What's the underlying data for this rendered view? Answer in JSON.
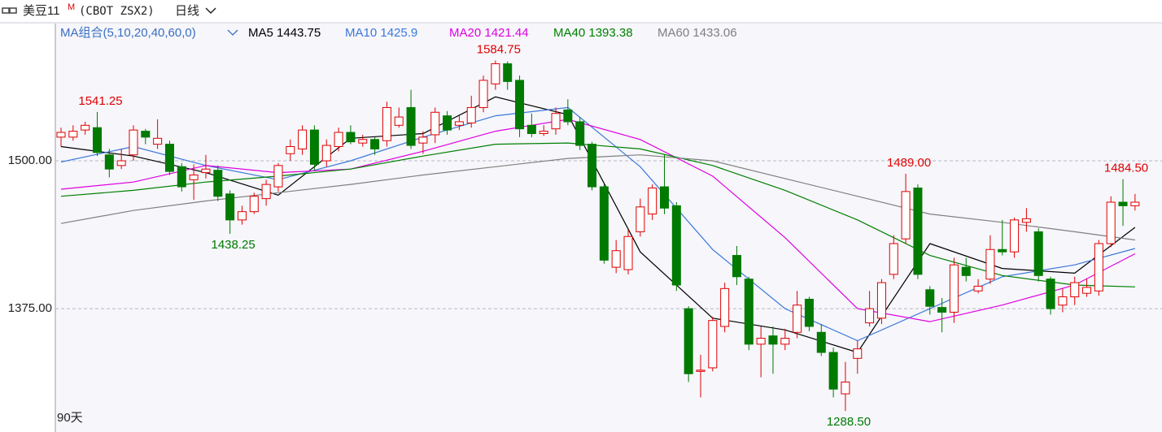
{
  "header": {
    "symbol": "美豆11",
    "badge": "M",
    "code": "(CBOT ZSX2)",
    "period": "日线"
  },
  "chart_data": {
    "type": "candlestick",
    "ma_title": "MA组合(5,10,20,40,60,0)",
    "period_label": "90天",
    "ylim": [
      1270.75,
      1616
    ],
    "yticks": [
      {
        "value": 1500,
        "label": "1500.00"
      },
      {
        "value": 1375,
        "label": "1375.00"
      }
    ],
    "grid": true,
    "up_color": "#e00000",
    "down_color": "#007a00",
    "open": [
      1520,
      1520,
      1526,
      1528,
      1505,
      1496,
      1505,
      1525,
      1514,
      1514,
      1495,
      1484,
      1490,
      1492,
      1472,
      1450,
      1457,
      1468,
      1478,
      1506,
      1510,
      1526,
      1500,
      1512,
      1524,
      1515,
      1518,
      1517,
      1530,
      1545,
      1515,
      1522,
      1538,
      1530,
      1532,
      1545,
      1565,
      1582,
      1568,
      1530,
      1523,
      1527,
      1543,
      1533,
      1514,
      1478,
      1410,
      1408,
      1440,
      1455,
      1478,
      1462,
      1375,
      1322,
      1325,
      1360,
      1420,
      1400,
      1345,
      1352,
      1345,
      1355,
      1383,
      1355,
      1338,
      1303,
      1333,
      1363,
      1367,
      1404,
      1434,
      1477,
      1391,
      1376,
      1372,
      1410,
      1390,
      1400,
      1425,
      1423,
      1448,
      1440,
      1400,
      1378,
      1385,
      1388,
      1390,
      1430,
      1465,
      1462
    ],
    "high": [
      1528,
      1530,
      1533,
      1541.25,
      1510,
      1510,
      1530,
      1527,
      1535,
      1517,
      1498,
      1497,
      1505,
      1496,
      1475,
      1462,
      1473,
      1484,
      1498,
      1518,
      1530,
      1530,
      1518,
      1528,
      1530,
      1522,
      1520,
      1550,
      1545,
      1560,
      1525,
      1545,
      1542,
      1538,
      1555,
      1572,
      1584.75,
      1584,
      1572,
      1540,
      1530,
      1545,
      1552,
      1537,
      1516,
      1480,
      1433,
      1442,
      1468,
      1480,
      1505,
      1465,
      1377,
      1336,
      1368,
      1397,
      1428,
      1402,
      1360,
      1360,
      1358,
      1390,
      1385,
      1362,
      1342,
      1330,
      1348,
      1390,
      1400,
      1437,
      1489,
      1480,
      1394,
      1384,
      1418,
      1418,
      1400,
      1437,
      1450,
      1452,
      1460,
      1443,
      1402,
      1392,
      1402,
      1400,
      1433,
      1470,
      1484.5,
      1472
    ],
    "low": [
      1512,
      1517,
      1522,
      1504,
      1486,
      1493,
      1500,
      1514,
      1510,
      1488,
      1474,
      1467,
      1485,
      1466,
      1438.25,
      1446,
      1455,
      1462,
      1474,
      1500,
      1505,
      1492,
      1495,
      1508,
      1514,
      1512,
      1505,
      1512,
      1528,
      1510,
      1506,
      1515,
      1522,
      1526,
      1528,
      1541,
      1560,
      1560,
      1520,
      1520,
      1521,
      1522,
      1530,
      1509,
      1475,
      1413,
      1405,
      1404,
      1436,
      1450,
      1455,
      1390,
      1313,
      1300,
      1322,
      1355,
      1395,
      1340,
      1317,
      1320,
      1340,
      1350,
      1356,
      1335,
      1300,
      1288.5,
      1320,
      1360,
      1362,
      1400,
      1430,
      1400,
      1370,
      1355,
      1363,
      1398,
      1388,
      1396,
      1420,
      1418,
      1440,
      1398,
      1370,
      1372,
      1378,
      1385,
      1386,
      1427,
      1445,
      1458
    ],
    "close": [
      1524,
      1525,
      1530,
      1507,
      1493,
      1500,
      1526,
      1520,
      1519,
      1491,
      1478,
      1488,
      1493,
      1470,
      1450,
      1457,
      1470,
      1480,
      1496,
      1512,
      1526,
      1497,
      1513,
      1524,
      1516,
      1518,
      1510,
      1545,
      1537,
      1513,
      1520,
      1541,
      1526,
      1533,
      1545,
      1568,
      1582,
      1567,
      1527,
      1523,
      1525,
      1540,
      1533,
      1513,
      1478,
      1416,
      1424,
      1436,
      1461,
      1477,
      1460,
      1395,
      1320,
      1323,
      1365,
      1392,
      1402,
      1345,
      1350,
      1345,
      1350,
      1378,
      1360,
      1338,
      1307,
      1313,
      1341,
      1375,
      1397,
      1430,
      1474,
      1404,
      1377,
      1372,
      1412,
      1403,
      1394,
      1425,
      1423,
      1450,
      1451,
      1403,
      1375,
      1385,
      1397,
      1393,
      1430,
      1465,
      1462,
      1465
    ],
    "series": [
      {
        "name": "MA5",
        "color": "#000000",
        "x": [
          0,
          6,
          12,
          18,
          24,
          30,
          36,
          42,
          48,
          54,
          60,
          66,
          72,
          78,
          84,
          89
        ],
        "values": [
          1512,
          1504,
          1490,
          1471,
          1519,
          1523,
          1554,
          1539,
          1423,
          1367,
          1357,
          1338,
          1430,
          1409,
          1405,
          1443.75
        ]
      },
      {
        "name": "MA10",
        "color": "#3b78d8",
        "x": [
          0,
          6,
          12,
          18,
          24,
          30,
          36,
          42,
          48,
          54,
          60,
          66,
          72,
          78,
          84,
          89
        ],
        "values": [
          1499,
          1512,
          1496,
          1484,
          1500,
          1520,
          1538,
          1545,
          1495,
          1425,
          1375,
          1348,
          1375,
          1402,
          1412,
          1425.9
        ]
      },
      {
        "name": "MA20",
        "color": "#e000e0",
        "x": [
          0,
          6,
          12,
          18,
          24,
          30,
          36,
          42,
          48,
          54,
          60,
          66,
          72,
          78,
          84,
          89
        ],
        "values": [
          1476,
          1482,
          1496,
          1490,
          1493,
          1508,
          1525,
          1535,
          1518,
          1487,
          1435,
          1375,
          1364,
          1378,
          1395,
          1421.44
        ]
      },
      {
        "name": "MA40",
        "color": "#008000",
        "x": [
          0,
          6,
          12,
          18,
          24,
          30,
          36,
          42,
          48,
          54,
          60,
          66,
          72,
          78,
          84,
          89
        ],
        "values": [
          1470,
          1475,
          1482,
          1487,
          1493,
          1504,
          1514,
          1515,
          1510,
          1496,
          1475,
          1450,
          1420,
          1403,
          1395,
          1393.38
        ]
      },
      {
        "name": "MA60",
        "color": "#808080",
        "x": [
          0,
          6,
          12,
          18,
          24,
          30,
          36,
          42,
          48,
          54,
          60,
          66,
          72,
          78,
          84,
          89
        ],
        "values": [
          1447,
          1458,
          1466,
          1473,
          1480,
          1488,
          1495,
          1502,
          1505,
          1500,
          1485,
          1470,
          1455,
          1448,
          1440,
          1433.06
        ]
      }
    ],
    "annotations": [
      {
        "value": 1541.25,
        "label": "1541.25"
      },
      {
        "value": 1438.25,
        "label": "1438.25"
      },
      {
        "value": 1584.75,
        "label": "1584.75"
      },
      {
        "value": 1288.5,
        "label": "1288.50"
      },
      {
        "value": 1489,
        "label": "1489.00"
      },
      {
        "value": 1484.5,
        "label": "1484.50"
      }
    ]
  }
}
